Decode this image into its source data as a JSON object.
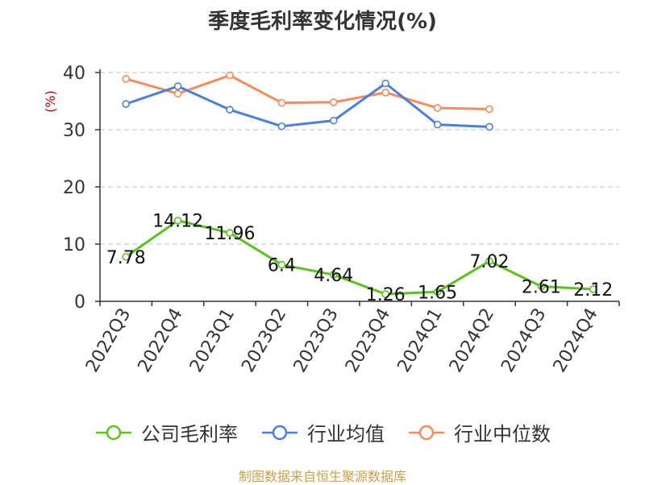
{
  "chart_data": {
    "type": "line",
    "title": "季度毛利率变化情况(%)",
    "ylabel": "(%)",
    "ylim": [
      0,
      40
    ],
    "yticks": [
      0,
      10,
      20,
      30,
      40
    ],
    "grid": true,
    "legend_placement": "bottom",
    "categories": [
      "2022Q3",
      "2022Q4",
      "2023Q1",
      "2023Q2",
      "2023Q3",
      "2023Q4",
      "2024Q1",
      "2024Q2",
      "2024Q3",
      "2024Q4"
    ],
    "series": [
      {
        "name": "公司毛利率",
        "color": "#5cc21e",
        "values": [
          7.78,
          14.12,
          11.96,
          6.4,
          4.64,
          1.26,
          1.65,
          7.02,
          2.61,
          2.12
        ],
        "labels": [
          "7.78",
          "14.12",
          "11.96",
          "6.4",
          "4.64",
          "1.26",
          "1.65",
          "7.02",
          "2.61",
          "2.12"
        ]
      },
      {
        "name": "行业均值",
        "color": "#4a7fe0",
        "values": [
          34.5,
          37.6,
          33.5,
          30.6,
          31.6,
          38.1,
          30.9,
          30.5,
          null,
          null
        ]
      },
      {
        "name": "行业中位数",
        "color": "#f58c5a",
        "values": [
          38.9,
          36.3,
          39.5,
          34.7,
          34.8,
          36.5,
          33.8,
          33.6,
          null,
          null
        ]
      }
    ]
  },
  "source": "制图数据来自恒生聚源数据库"
}
